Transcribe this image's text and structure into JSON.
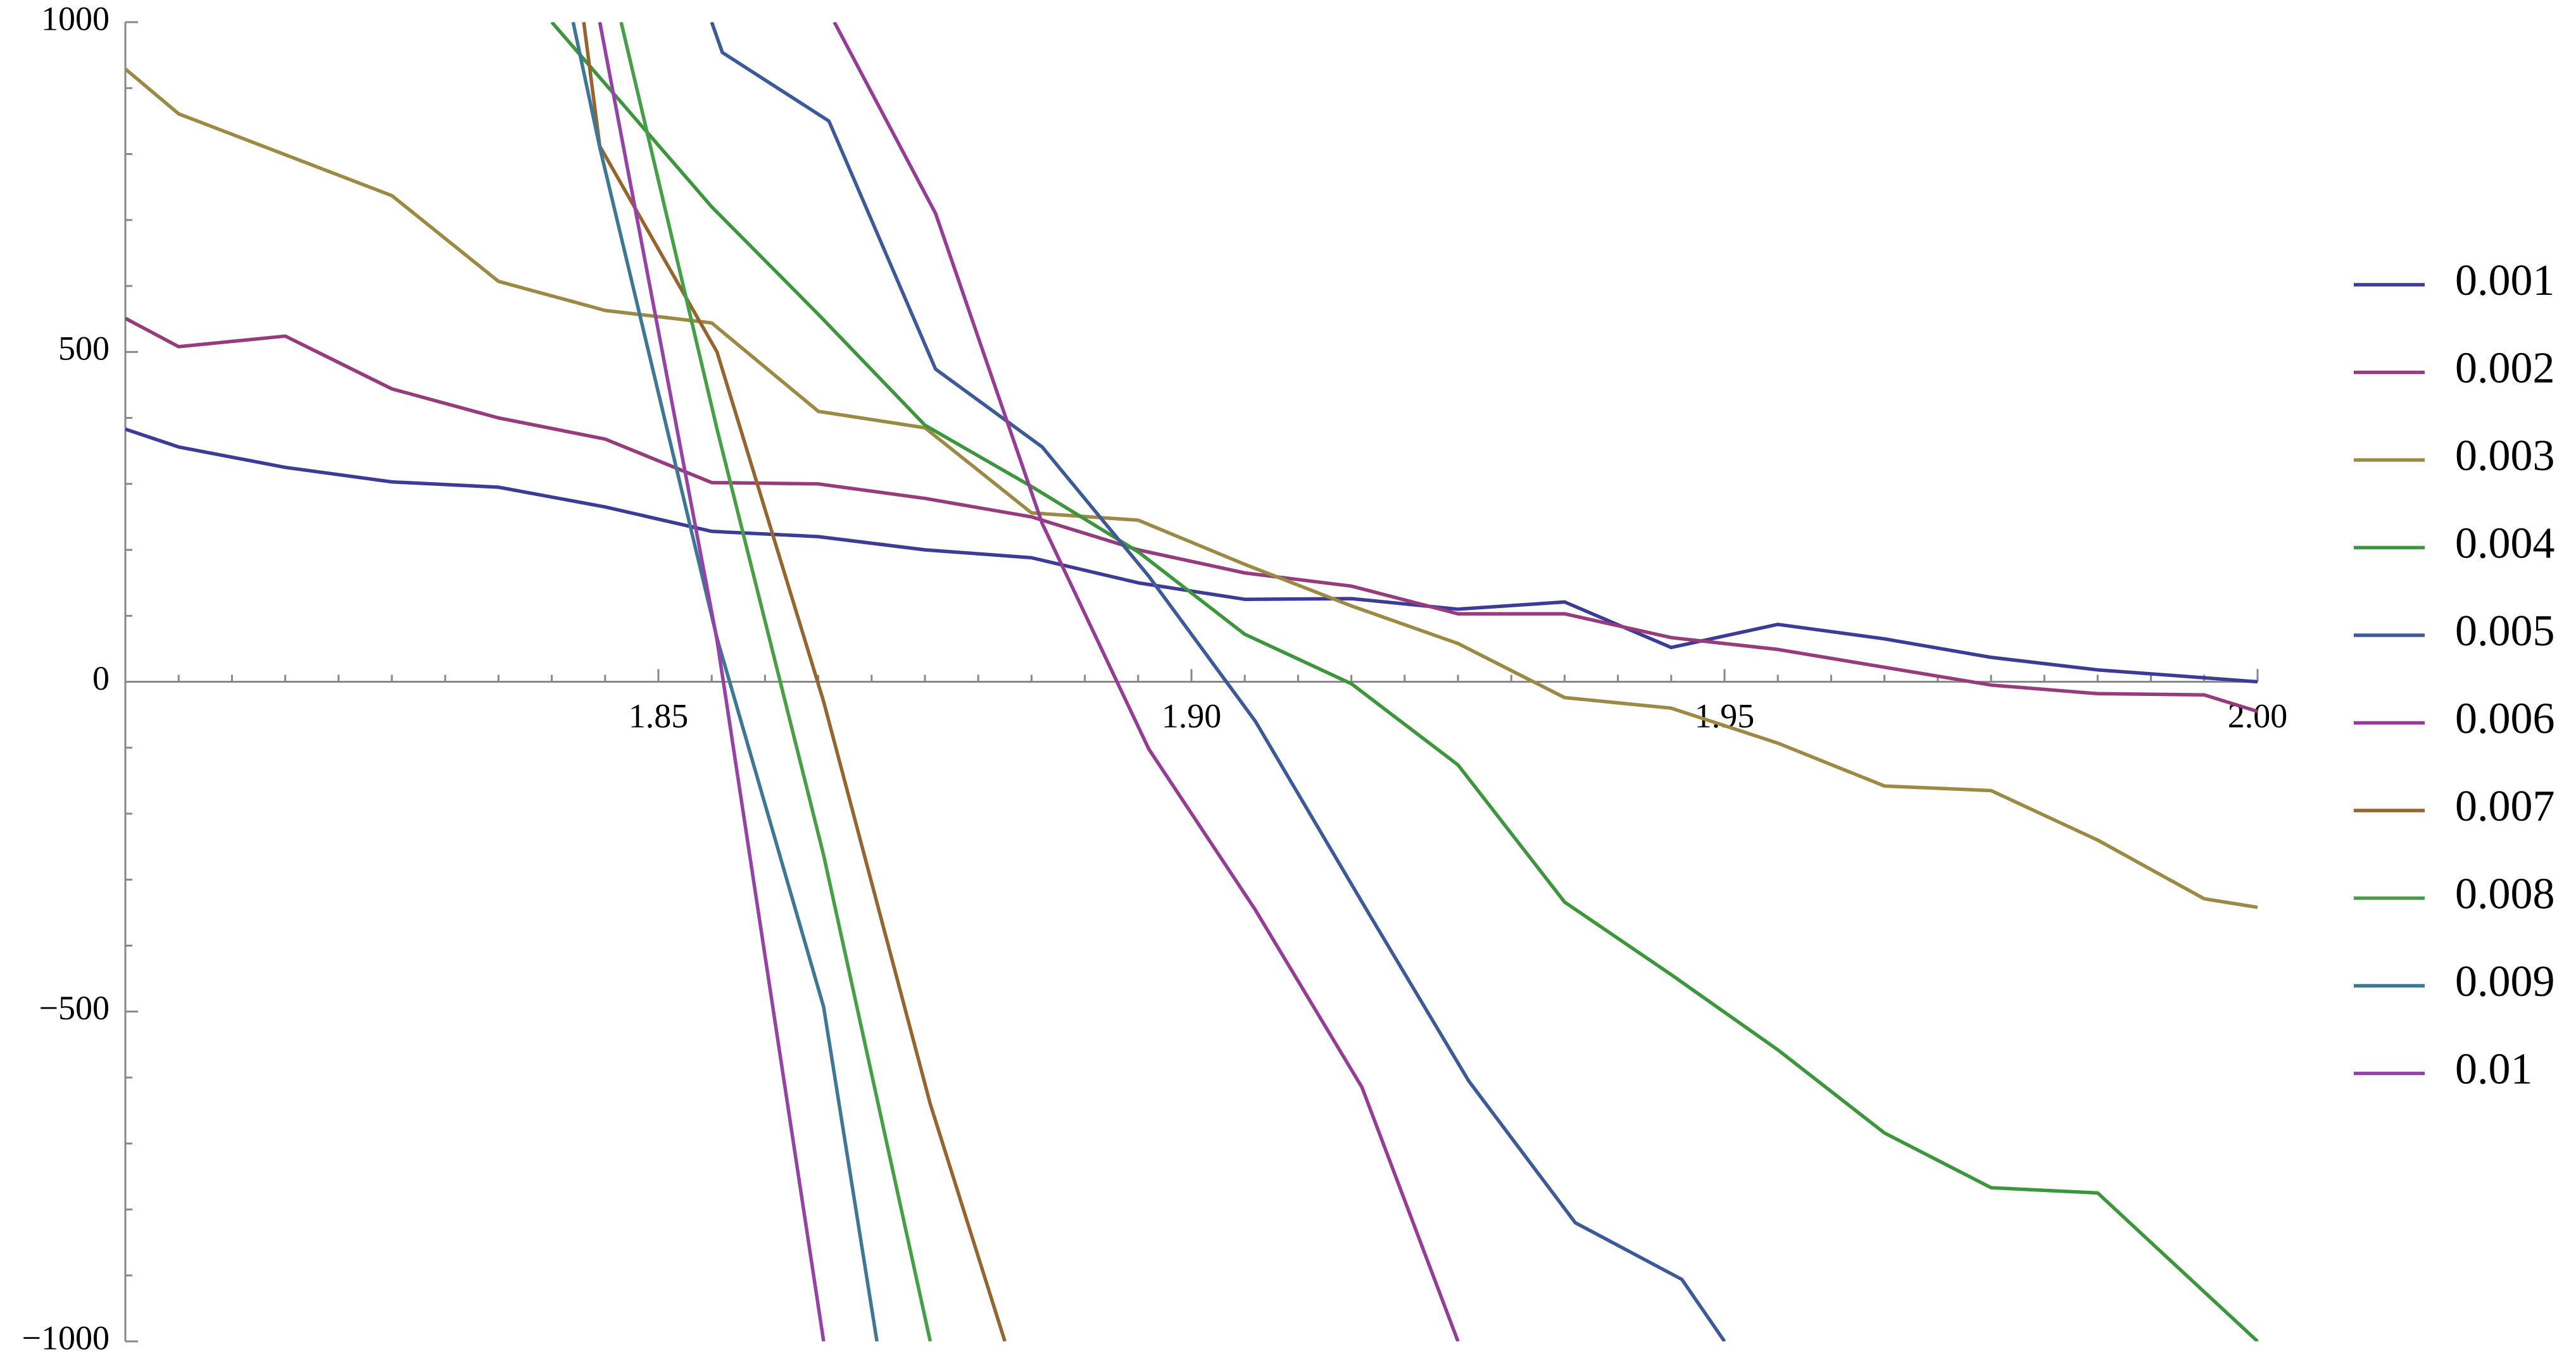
{
  "chart_data": {
    "type": "line",
    "title": "",
    "xlabel": "",
    "ylabel": "",
    "xlim": [
      1.8,
      2.0
    ],
    "ylim": [
      -1000,
      1000
    ],
    "x_ticks": [
      {
        "value": 1.85,
        "label": "1.85"
      },
      {
        "value": 1.9,
        "label": "1.90"
      },
      {
        "value": 1.95,
        "label": "1.95"
      },
      {
        "value": 2.0,
        "label": "2.00"
      }
    ],
    "y_ticks": [
      {
        "value": 1000,
        "label": "1000"
      },
      {
        "value": 500,
        "label": "500"
      },
      {
        "value": 0,
        "label": "0"
      },
      {
        "value": -500,
        "label": "−500"
      },
      {
        "value": -1000,
        "label": "−1000"
      }
    ],
    "grid": false,
    "legend_position": "right",
    "series": [
      {
        "name": "0.001",
        "color": "#3c3c96",
        "points": [
          [
            1.8,
            383
          ],
          [
            1.805,
            356
          ],
          [
            1.815,
            325
          ],
          [
            1.825,
            303
          ],
          [
            1.835,
            295
          ],
          [
            1.845,
            265
          ],
          [
            1.855,
            228
          ],
          [
            1.865,
            220
          ],
          [
            1.875,
            200
          ],
          [
            1.885,
            188
          ],
          [
            1.895,
            150
          ],
          [
            1.905,
            125
          ],
          [
            1.915,
            126
          ],
          [
            1.925,
            110
          ],
          [
            1.935,
            121
          ],
          [
            1.945,
            52
          ],
          [
            1.955,
            87
          ],
          [
            1.965,
            65
          ],
          [
            1.975,
            37
          ],
          [
            1.985,
            18
          ],
          [
            2.0,
            0
          ]
        ]
      },
      {
        "name": "0.002",
        "color": "#963c7c",
        "points": [
          [
            1.8,
            551
          ],
          [
            1.805,
            508
          ],
          [
            1.815,
            524
          ],
          [
            1.825,
            444
          ],
          [
            1.835,
            400
          ],
          [
            1.845,
            368
          ],
          [
            1.855,
            302
          ],
          [
            1.865,
            300
          ],
          [
            1.875,
            278
          ],
          [
            1.885,
            250
          ],
          [
            1.895,
            200
          ],
          [
            1.905,
            165
          ],
          [
            1.915,
            145
          ],
          [
            1.925,
            103
          ],
          [
            1.935,
            103
          ],
          [
            1.945,
            67
          ],
          [
            1.955,
            49
          ],
          [
            1.965,
            22
          ],
          [
            1.975,
            -5
          ],
          [
            1.985,
            -18
          ],
          [
            1.995,
            -20
          ],
          [
            2.0,
            -45
          ]
        ]
      },
      {
        "name": "0.003",
        "color": "#9a8a44",
        "points": [
          [
            1.8,
            929
          ],
          [
            1.805,
            861
          ],
          [
            1.825,
            737
          ],
          [
            1.835,
            607
          ],
          [
            1.845,
            563
          ],
          [
            1.855,
            544
          ],
          [
            1.865,
            410
          ],
          [
            1.875,
            385
          ],
          [
            1.885,
            256
          ],
          [
            1.895,
            245
          ],
          [
            1.905,
            178
          ],
          [
            1.915,
            115
          ],
          [
            1.925,
            58
          ],
          [
            1.935,
            -24
          ],
          [
            1.945,
            -40
          ],
          [
            1.955,
            -93
          ],
          [
            1.965,
            -158
          ],
          [
            1.975,
            -165
          ],
          [
            1.985,
            -240
          ],
          [
            1.995,
            -329
          ],
          [
            2.0,
            -342
          ]
        ]
      },
      {
        "name": "0.004",
        "color": "#3c963c",
        "points": [
          [
            1.84,
            1000
          ],
          [
            1.855,
            720
          ],
          [
            1.865,
            557
          ],
          [
            1.875,
            389
          ],
          [
            1.885,
            296
          ],
          [
            1.895,
            197
          ],
          [
            1.905,
            72
          ],
          [
            1.915,
            -3
          ],
          [
            1.925,
            -126
          ],
          [
            1.935,
            -334
          ],
          [
            1.945,
            -444
          ],
          [
            1.955,
            -558
          ],
          [
            1.965,
            -684
          ],
          [
            1.975,
            -767
          ],
          [
            1.985,
            -775
          ],
          [
            2.0,
            -1000
          ]
        ]
      },
      {
        "name": "0.005",
        "color": "#3c5a9a",
        "points": [
          [
            1.855,
            1000
          ],
          [
            1.856,
            954
          ],
          [
            1.866,
            850
          ],
          [
            1.876,
            474
          ],
          [
            1.886,
            356
          ],
          [
            1.896,
            160
          ],
          [
            1.906,
            -60
          ],
          [
            1.916,
            -334
          ],
          [
            1.926,
            -605
          ],
          [
            1.936,
            -820
          ],
          [
            1.946,
            -906
          ],
          [
            1.95,
            -1000
          ]
        ]
      },
      {
        "name": "0.006",
        "color": "#963c96",
        "points": [
          [
            1.8665,
            1000
          ],
          [
            1.876,
            710
          ],
          [
            1.886,
            240
          ],
          [
            1.896,
            -102
          ],
          [
            1.906,
            -346
          ],
          [
            1.916,
            -615
          ],
          [
            1.925,
            -1000
          ]
        ]
      },
      {
        "name": "0.007",
        "color": "#96642c",
        "points": [
          [
            1.843,
            1000
          ],
          [
            1.8445,
            812
          ],
          [
            1.8555,
            500
          ],
          [
            1.8655,
            -30
          ],
          [
            1.8755,
            -640
          ],
          [
            1.8825,
            -1000
          ]
        ]
      },
      {
        "name": "0.008",
        "color": "#44a044",
        "points": [
          [
            1.8465,
            1000
          ],
          [
            1.8555,
            383
          ],
          [
            1.8655,
            -263
          ],
          [
            1.8755,
            -1000
          ]
        ]
      },
      {
        "name": "0.009",
        "color": "#3c7896",
        "points": [
          [
            1.842,
            1000
          ],
          [
            1.8445,
            810
          ],
          [
            1.8555,
            66
          ],
          [
            1.8655,
            -493
          ],
          [
            1.8705,
            -1000
          ]
        ]
      },
      {
        "name": "0.01",
        "color": "#9640a8",
        "points": [
          [
            1.8445,
            1000
          ],
          [
            1.8555,
            63
          ],
          [
            1.8655,
            -1000
          ]
        ]
      }
    ]
  }
}
